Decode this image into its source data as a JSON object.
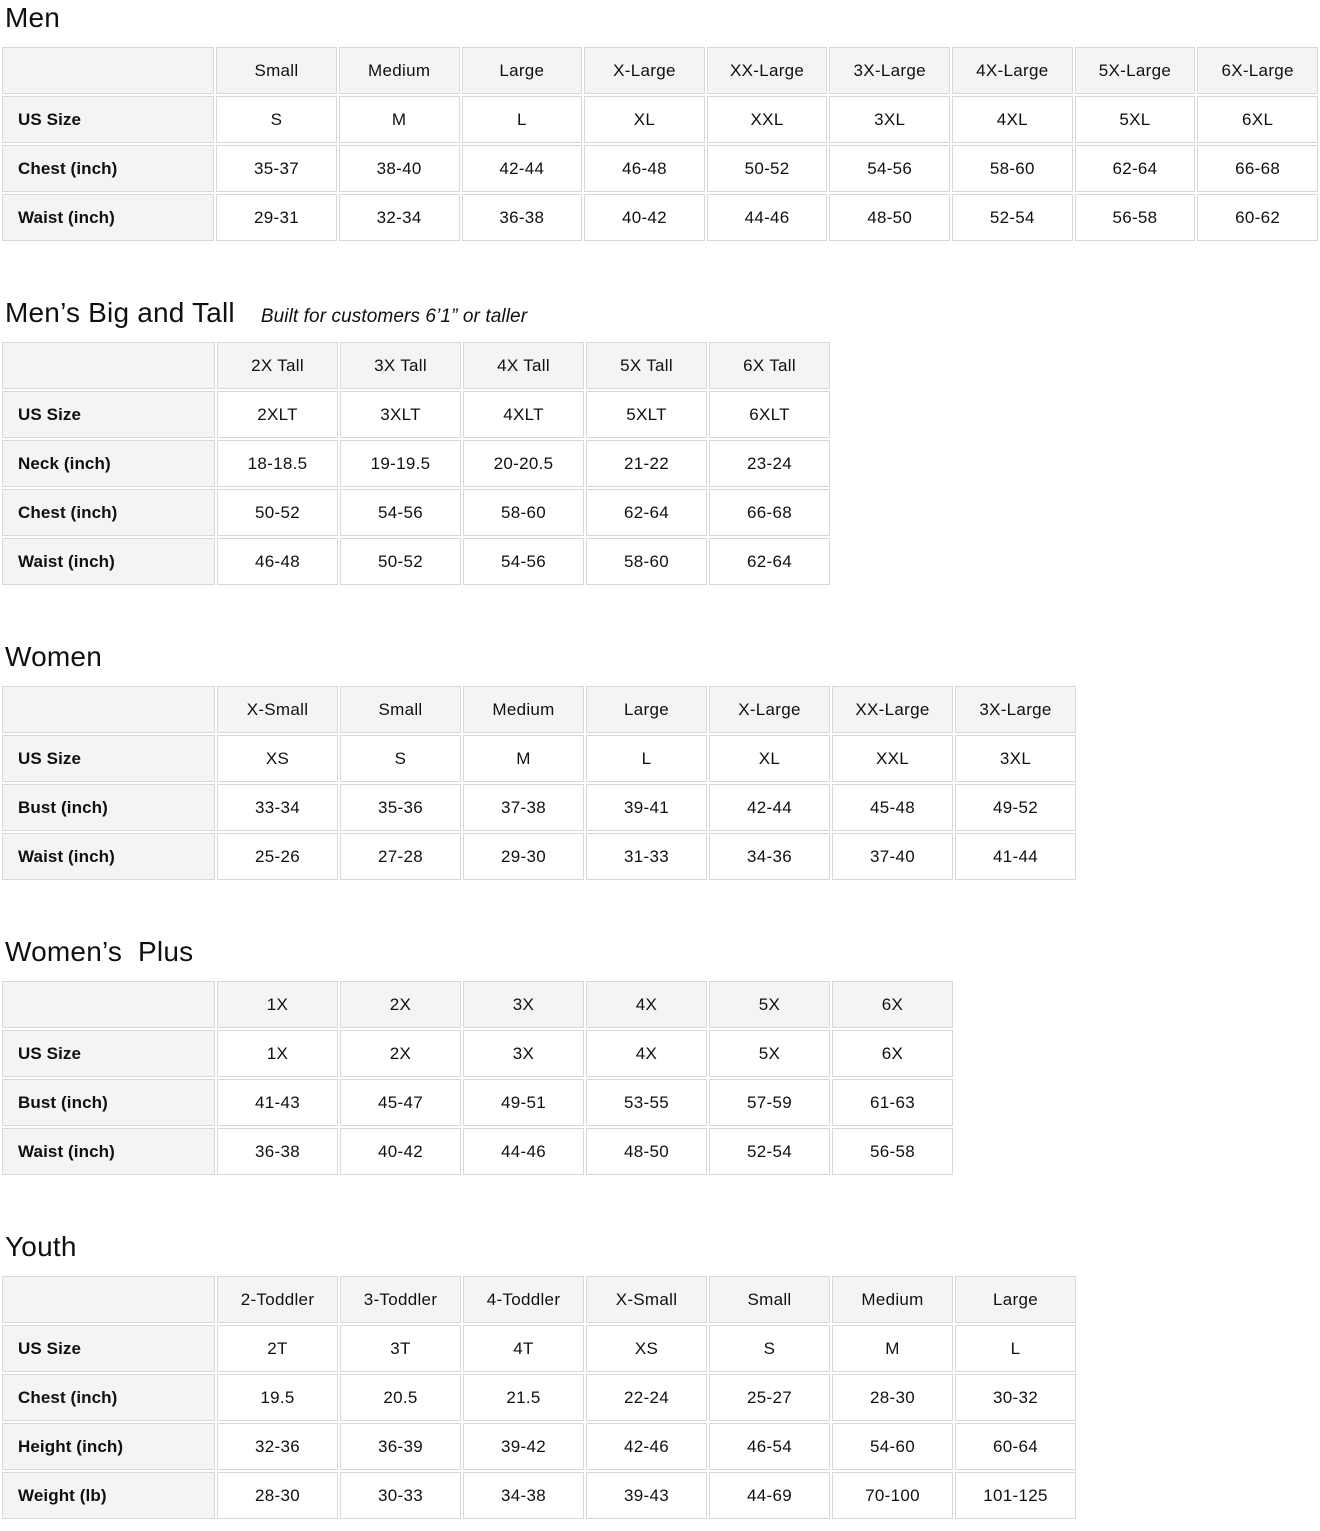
{
  "colors": {
    "header_bg": "#f4f4f4",
    "cell_bg": "#ffffff",
    "border": "#d8d8d8",
    "text": "#0f1111"
  },
  "sections": [
    {
      "title": "Men",
      "subtitle": "",
      "columns": [
        "Small",
        "Medium",
        "Large",
        "X-Large",
        "XX-Large",
        "3X-Large",
        "4X-Large",
        "5X-Large",
        "6X-Large"
      ],
      "rows": [
        {
          "label": "US Size",
          "values": [
            "S",
            "M",
            "L",
            "XL",
            "XXL",
            "3XL",
            "4XL",
            "5XL",
            "6XL"
          ]
        },
        {
          "label": "Chest (inch)",
          "values": [
            "35-37",
            "38-40",
            "42-44",
            "46-48",
            "50-52",
            "54-56",
            "58-60",
            "62-64",
            "66-68"
          ]
        },
        {
          "label": "Waist (inch)",
          "values": [
            "29-31",
            "32-34",
            "36-38",
            "40-42",
            "44-46",
            "48-50",
            "52-54",
            "56-58",
            "60-62"
          ]
        }
      ]
    },
    {
      "title": "Men’s Big and Tall",
      "subtitle": "Built for customers 6’1” or taller",
      "columns": [
        "2X Tall",
        "3X Tall",
        "4X Tall",
        "5X Tall",
        "6X Tall"
      ],
      "rows": [
        {
          "label": "US Size",
          "values": [
            "2XLT",
            "3XLT",
            "4XLT",
            "5XLT",
            "6XLT"
          ]
        },
        {
          "label": "Neck (inch)",
          "values": [
            "18-18.5",
            "19-19.5",
            "20-20.5",
            "21-22",
            "23-24"
          ]
        },
        {
          "label": "Chest (inch)",
          "values": [
            "50-52",
            "54-56",
            "58-60",
            "62-64",
            "66-68"
          ]
        },
        {
          "label": "Waist (inch)",
          "values": [
            "46-48",
            "50-52",
            "54-56",
            "58-60",
            "62-64"
          ]
        }
      ]
    },
    {
      "title": "Women",
      "subtitle": "",
      "columns": [
        "X-Small",
        "Small",
        "Medium",
        "Large",
        "X-Large",
        "XX-Large",
        "3X-Large"
      ],
      "rows": [
        {
          "label": "US Size",
          "values": [
            "XS",
            "S",
            "M",
            "L",
            "XL",
            "XXL",
            "3XL"
          ]
        },
        {
          "label": "Bust (inch)",
          "values": [
            "33-34",
            "35-36",
            "37-38",
            "39-41",
            "42-44",
            "45-48",
            "49-52"
          ]
        },
        {
          "label": "Waist (inch)",
          "values": [
            "25-26",
            "27-28",
            "29-30",
            "31-33",
            "34-36",
            "37-40",
            "41-44"
          ]
        }
      ]
    },
    {
      "title": "Women’s  Plus",
      "subtitle": "",
      "columns": [
        "1X",
        "2X",
        "3X",
        "4X",
        "5X",
        "6X"
      ],
      "rows": [
        {
          "label": "US Size",
          "values": [
            "1X",
            "2X",
            "3X",
            "4X",
            "5X",
            "6X"
          ]
        },
        {
          "label": "Bust (inch)",
          "values": [
            "41-43",
            "45-47",
            "49-51",
            "53-55",
            "57-59",
            "61-63"
          ]
        },
        {
          "label": "Waist (inch)",
          "values": [
            "36-38",
            "40-42",
            "44-46",
            "48-50",
            "52-54",
            "56-58"
          ]
        }
      ]
    },
    {
      "title": "Youth",
      "subtitle": "",
      "columns": [
        "2-Toddler",
        "3-Toddler",
        "4-Toddler",
        "X-Small",
        "Small",
        "Medium",
        "Large"
      ],
      "rows": [
        {
          "label": "US Size",
          "values": [
            "2T",
            "3T",
            "4T",
            "XS",
            "S",
            "M",
            "L"
          ]
        },
        {
          "label": "Chest (inch)",
          "values": [
            "19.5",
            "20.5",
            "21.5",
            "22-24",
            "25-27",
            "28-30",
            "30-32"
          ]
        },
        {
          "label": "Height (inch)",
          "values": [
            "32-36",
            "36-39",
            "39-42",
            "42-46",
            "46-54",
            "54-60",
            "60-64"
          ]
        },
        {
          "label": "Weight (lb)",
          "values": [
            "28-30",
            "30-33",
            "34-38",
            "39-43",
            "44-69",
            "70-100",
            "101-125"
          ]
        }
      ]
    }
  ]
}
